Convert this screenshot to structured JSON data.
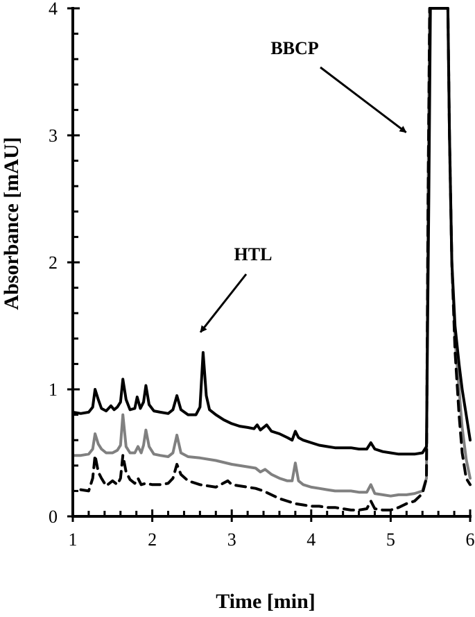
{
  "chart_data": {
    "type": "line",
    "title": "",
    "xlabel": "Time [min]",
    "ylabel": "Absorbance [mAU]",
    "xlim": [
      1,
      6
    ],
    "ylim": [
      0,
      4
    ],
    "xticks": [
      1,
      2,
      3,
      4,
      5,
      6
    ],
    "yticks": [
      0,
      1,
      2,
      3,
      4
    ],
    "grid": false,
    "legend": "none",
    "annotations": [
      {
        "text": "HTL",
        "points_to": {
          "x": 2.65,
          "y": 1.45
        }
      },
      {
        "text": "BBCP",
        "points_to": {
          "x": 5.15,
          "y": 3.1
        }
      }
    ],
    "series": [
      {
        "style": "solid",
        "color": "#000000",
        "points": [
          [
            1.0,
            0.82
          ],
          [
            1.1,
            0.81
          ],
          [
            1.2,
            0.82
          ],
          [
            1.25,
            0.86
          ],
          [
            1.28,
            1.0
          ],
          [
            1.32,
            0.92
          ],
          [
            1.36,
            0.85
          ],
          [
            1.42,
            0.83
          ],
          [
            1.48,
            0.87
          ],
          [
            1.52,
            0.84
          ],
          [
            1.56,
            0.86
          ],
          [
            1.6,
            0.9
          ],
          [
            1.63,
            1.08
          ],
          [
            1.67,
            0.92
          ],
          [
            1.72,
            0.84
          ],
          [
            1.78,
            0.85
          ],
          [
            1.81,
            0.94
          ],
          [
            1.85,
            0.85
          ],
          [
            1.89,
            0.9
          ],
          [
            1.92,
            1.03
          ],
          [
            1.96,
            0.88
          ],
          [
            2.02,
            0.83
          ],
          [
            2.1,
            0.82
          ],
          [
            2.2,
            0.81
          ],
          [
            2.26,
            0.84
          ],
          [
            2.31,
            0.95
          ],
          [
            2.36,
            0.84
          ],
          [
            2.45,
            0.8
          ],
          [
            2.55,
            0.8
          ],
          [
            2.6,
            0.86
          ],
          [
            2.64,
            1.29
          ],
          [
            2.68,
            0.95
          ],
          [
            2.72,
            0.84
          ],
          [
            2.8,
            0.8
          ],
          [
            2.9,
            0.76
          ],
          [
            3.0,
            0.73
          ],
          [
            3.1,
            0.71
          ],
          [
            3.2,
            0.7
          ],
          [
            3.28,
            0.69
          ],
          [
            3.32,
            0.72
          ],
          [
            3.36,
            0.68
          ],
          [
            3.44,
            0.72
          ],
          [
            3.5,
            0.67
          ],
          [
            3.6,
            0.65
          ],
          [
            3.7,
            0.62
          ],
          [
            3.76,
            0.6
          ],
          [
            3.8,
            0.67
          ],
          [
            3.84,
            0.62
          ],
          [
            3.9,
            0.6
          ],
          [
            4.0,
            0.58
          ],
          [
            4.1,
            0.56
          ],
          [
            4.2,
            0.55
          ],
          [
            4.3,
            0.54
          ],
          [
            4.4,
            0.54
          ],
          [
            4.5,
            0.54
          ],
          [
            4.6,
            0.53
          ],
          [
            4.7,
            0.53
          ],
          [
            4.75,
            0.58
          ],
          [
            4.8,
            0.53
          ],
          [
            4.9,
            0.51
          ],
          [
            5.0,
            0.5
          ],
          [
            5.1,
            0.49
          ],
          [
            5.2,
            0.49
          ],
          [
            5.3,
            0.49
          ],
          [
            5.4,
            0.5
          ],
          [
            5.45,
            0.55
          ],
          [
            5.48,
            2.5
          ],
          [
            5.5,
            4.0
          ],
          [
            5.72,
            4.0
          ],
          [
            5.74,
            3.0
          ],
          [
            5.77,
            2.0
          ],
          [
            5.81,
            1.5
          ],
          [
            5.86,
            1.2
          ],
          [
            5.9,
            1.0
          ],
          [
            5.95,
            0.8
          ],
          [
            6.0,
            0.6
          ]
        ]
      },
      {
        "style": "solid",
        "color": "#808080",
        "points": [
          [
            1.0,
            0.48
          ],
          [
            1.1,
            0.48
          ],
          [
            1.2,
            0.49
          ],
          [
            1.25,
            0.53
          ],
          [
            1.28,
            0.65
          ],
          [
            1.32,
            0.57
          ],
          [
            1.36,
            0.53
          ],
          [
            1.42,
            0.5
          ],
          [
            1.5,
            0.5
          ],
          [
            1.56,
            0.52
          ],
          [
            1.6,
            0.56
          ],
          [
            1.63,
            0.8
          ],
          [
            1.67,
            0.55
          ],
          [
            1.72,
            0.5
          ],
          [
            1.78,
            0.5
          ],
          [
            1.82,
            0.55
          ],
          [
            1.86,
            0.5
          ],
          [
            1.89,
            0.56
          ],
          [
            1.92,
            0.68
          ],
          [
            1.96,
            0.55
          ],
          [
            2.02,
            0.49
          ],
          [
            2.1,
            0.48
          ],
          [
            2.2,
            0.47
          ],
          [
            2.26,
            0.5
          ],
          [
            2.31,
            0.64
          ],
          [
            2.36,
            0.5
          ],
          [
            2.45,
            0.47
          ],
          [
            2.6,
            0.46
          ],
          [
            2.8,
            0.44
          ],
          [
            3.0,
            0.41
          ],
          [
            3.2,
            0.39
          ],
          [
            3.3,
            0.38
          ],
          [
            3.36,
            0.35
          ],
          [
            3.42,
            0.37
          ],
          [
            3.5,
            0.33
          ],
          [
            3.6,
            0.3
          ],
          [
            3.7,
            0.28
          ],
          [
            3.76,
            0.28
          ],
          [
            3.8,
            0.42
          ],
          [
            3.84,
            0.28
          ],
          [
            3.9,
            0.25
          ],
          [
            4.0,
            0.23
          ],
          [
            4.1,
            0.22
          ],
          [
            4.2,
            0.21
          ],
          [
            4.3,
            0.2
          ],
          [
            4.4,
            0.2
          ],
          [
            4.5,
            0.2
          ],
          [
            4.6,
            0.19
          ],
          [
            4.7,
            0.19
          ],
          [
            4.75,
            0.25
          ],
          [
            4.8,
            0.18
          ],
          [
            4.9,
            0.17
          ],
          [
            5.0,
            0.16
          ],
          [
            5.1,
            0.17
          ],
          [
            5.2,
            0.17
          ],
          [
            5.3,
            0.18
          ],
          [
            5.4,
            0.2
          ],
          [
            5.45,
            0.3
          ],
          [
            5.47,
            2.5
          ],
          [
            5.49,
            4.0
          ],
          [
            5.72,
            4.0
          ],
          [
            5.74,
            3.0
          ],
          [
            5.77,
            2.0
          ],
          [
            5.81,
            1.4
          ],
          [
            5.86,
            1.0
          ],
          [
            5.9,
            0.7
          ],
          [
            5.95,
            0.45
          ],
          [
            6.0,
            0.3
          ]
        ]
      },
      {
        "style": "dashed",
        "color": "#000000",
        "points": [
          [
            1.1,
            0.21
          ],
          [
            1.2,
            0.2
          ],
          [
            1.25,
            0.3
          ],
          [
            1.28,
            0.48
          ],
          [
            1.32,
            0.35
          ],
          [
            1.36,
            0.3
          ],
          [
            1.42,
            0.24
          ],
          [
            1.5,
            0.28
          ],
          [
            1.56,
            0.25
          ],
          [
            1.6,
            0.3
          ],
          [
            1.63,
            0.48
          ],
          [
            1.67,
            0.35
          ],
          [
            1.72,
            0.29
          ],
          [
            1.78,
            0.26
          ],
          [
            1.82,
            0.3
          ],
          [
            1.86,
            0.25
          ],
          [
            1.92,
            0.26
          ],
          [
            2.0,
            0.25
          ],
          [
            2.1,
            0.25
          ],
          [
            2.2,
            0.26
          ],
          [
            2.26,
            0.3
          ],
          [
            2.31,
            0.41
          ],
          [
            2.36,
            0.33
          ],
          [
            2.45,
            0.28
          ],
          [
            2.6,
            0.25
          ],
          [
            2.8,
            0.23
          ],
          [
            2.95,
            0.28
          ],
          [
            3.0,
            0.25
          ],
          [
            3.1,
            0.24
          ],
          [
            3.2,
            0.23
          ],
          [
            3.3,
            0.22
          ],
          [
            3.4,
            0.2
          ],
          [
            3.5,
            0.17
          ],
          [
            3.6,
            0.14
          ],
          [
            3.7,
            0.12
          ],
          [
            3.8,
            0.1
          ],
          [
            3.9,
            0.09
          ],
          [
            4.0,
            0.08
          ],
          [
            4.1,
            0.08
          ],
          [
            4.2,
            0.07
          ],
          [
            4.3,
            0.07
          ],
          [
            4.4,
            0.06
          ],
          [
            4.5,
            0.05
          ],
          [
            4.6,
            0.05
          ],
          [
            4.7,
            0.06
          ],
          [
            4.75,
            0.12
          ],
          [
            4.8,
            0.06
          ],
          [
            4.9,
            0.05
          ],
          [
            5.0,
            0.05
          ],
          [
            5.1,
            0.07
          ],
          [
            5.2,
            0.1
          ],
          [
            5.3,
            0.12
          ],
          [
            5.4,
            0.18
          ],
          [
            5.45,
            0.3
          ],
          [
            5.47,
            2.5
          ],
          [
            5.49,
            4.0
          ],
          [
            5.72,
            4.0
          ],
          [
            5.74,
            3.0
          ],
          [
            5.77,
            2.0
          ],
          [
            5.81,
            1.3
          ],
          [
            5.86,
            0.8
          ],
          [
            5.9,
            0.5
          ],
          [
            5.95,
            0.3
          ],
          [
            6.0,
            0.25
          ]
        ]
      }
    ]
  }
}
